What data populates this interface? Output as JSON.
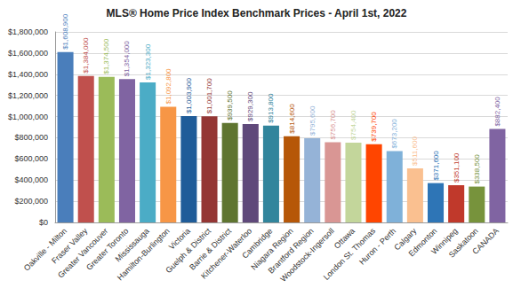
{
  "chart_data": {
    "type": "bar",
    "title": "MLS® Home Price Index Benchmark Prices - April 1st, 2022",
    "categories": [
      "Oakville - Milton",
      "Fraser Valley",
      "Greater Vancouver",
      "Greater Toronto",
      "Mississauga",
      "Hamilton-Burlington",
      "Victoria",
      "Guelph & District",
      "Barrie & District",
      "Kitchener-Waterloo",
      "Cambridge",
      "Niagara Region",
      "Brantford Region",
      "Woodstock-Ingersoll",
      "Ottawa",
      "London St. Thomas",
      "Huron - Perth",
      "Calgary",
      "Edmonton",
      "Winnipeg",
      "Saskatoon",
      "CANADA"
    ],
    "values": [
      1608900,
      1384000,
      1374500,
      1354000,
      1323300,
      1092800,
      1003900,
      1001700,
      939500,
      929300,
      913800,
      814600,
      795600,
      756700,
      754400,
      739700,
      673200,
      511600,
      371600,
      351100,
      338500,
      882400
    ],
    "value_labels": [
      "$1,608,900",
      "$1,384,000",
      "$1,374,500",
      "$1,354,000",
      "$1,323,300",
      "$1,092,800",
      "$1,003,900",
      "$1,001,700",
      "$939,500",
      "$929,300",
      "$913,800",
      "$814,600",
      "$795,600",
      "$756,700",
      "$754,400",
      "$739,700",
      "$673,200",
      "$511,600",
      "$371,600",
      "$351,100",
      "$338,500",
      "$882,400"
    ],
    "colors": [
      "#4a7ebb",
      "#c0504d",
      "#9bbb59",
      "#8064a2",
      "#4bacc6",
      "#f79646",
      "#1f5c99",
      "#943634",
      "#5f7530",
      "#5f497a",
      "#31859c",
      "#b65708",
      "#95b3d7",
      "#d99694",
      "#c3d69b",
      "#ff4500",
      "#7fb1d9",
      "#fac090",
      "#2e75b6",
      "#c0392b",
      "#77933c",
      "#8064a2"
    ],
    "ylim": [
      0,
      1800000
    ],
    "yticks": [
      {
        "value": 0,
        "label": "$0"
      },
      {
        "value": 200000,
        "label": "$200,000"
      },
      {
        "value": 400000,
        "label": "$400,000"
      },
      {
        "value": 600000,
        "label": "$600,000"
      },
      {
        "value": 800000,
        "label": "$800,000"
      },
      {
        "value": 1000000,
        "label": "$1,000,000"
      },
      {
        "value": 1200000,
        "label": "$1,200,000"
      },
      {
        "value": 1400000,
        "label": "$1,400,000"
      },
      {
        "value": 1600000,
        "label": "$1,600,000"
      },
      {
        "value": 1800000,
        "label": "$1,800,000"
      }
    ],
    "grid": true,
    "data_labels": true
  }
}
